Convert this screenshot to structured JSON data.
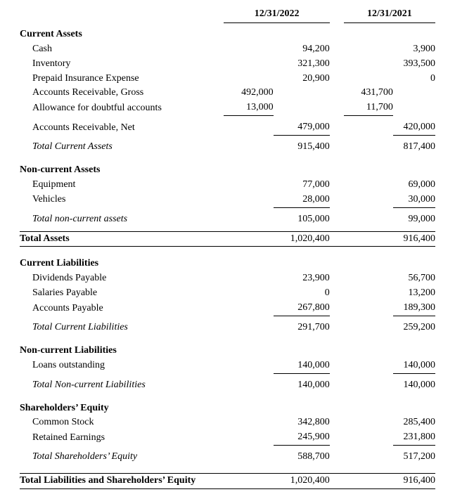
{
  "columns": {
    "y2022": "12/31/2022",
    "y2021": "12/31/2021"
  },
  "current_assets": {
    "heading": "Current Assets",
    "cash": {
      "label": "Cash",
      "v22": "94,200",
      "v21": "3,900"
    },
    "inventory": {
      "label": "Inventory",
      "v22": "321,300",
      "v21": "393,500"
    },
    "prepaid_ins": {
      "label": "Prepaid Insurance Expense",
      "v22": "20,900",
      "v21": "0"
    },
    "ar_gross": {
      "label": "Accounts Receivable, Gross",
      "s22": "492,000",
      "s21": "431,700"
    },
    "allowance": {
      "label": "Allowance for doubtful accounts",
      "s22": "13,000",
      "s21": "11,700"
    },
    "ar_net": {
      "label": "Accounts Receivable, Net",
      "v22": "479,000",
      "v21": "420,000"
    },
    "total": {
      "label": "Total Current Assets",
      "v22": "915,400",
      "v21": "817,400"
    }
  },
  "non_current_assets": {
    "heading": "Non-current Assets",
    "equipment": {
      "label": "Equipment",
      "v22": "77,000",
      "v21": "69,000"
    },
    "vehicles": {
      "label": "Vehicles",
      "v22": "28,000",
      "v21": "30,000"
    },
    "total": {
      "label": "Total non-current assets",
      "v22": "105,000",
      "v21": "99,000"
    }
  },
  "total_assets": {
    "label": "Total Assets",
    "v22": "1,020,400",
    "v21": "916,400"
  },
  "current_liabilities": {
    "heading": "Current Liabilities",
    "div_pay": {
      "label": "Dividends Payable",
      "v22": "23,900",
      "v21": "56,700"
    },
    "sal_pay": {
      "label": "Salaries Payable",
      "v22": "0",
      "v21": "13,200"
    },
    "acct_pay": {
      "label": "Accounts Payable",
      "v22": "267,800",
      "v21": "189,300"
    },
    "total": {
      "label": "Total Current Liabilities",
      "v22": "291,700",
      "v21": "259,200"
    }
  },
  "non_current_liabilities": {
    "heading": "Non-current Liabilities",
    "loans": {
      "label": "Loans outstanding",
      "v22": "140,000",
      "v21": "140,000"
    },
    "total": {
      "label": "Total Non-current Liabilities",
      "v22": "140,000",
      "v21": "140,000"
    }
  },
  "equity": {
    "heading": "Shareholders’ Equity",
    "common": {
      "label": "Common Stock",
      "v22": "342,800",
      "v21": "285,400"
    },
    "retained": {
      "label": "Retained Earnings",
      "v22": "245,900",
      "v21": "231,800"
    },
    "total": {
      "label": "Total Shareholders’ Equity",
      "v22": "588,700",
      "v21": "517,200"
    }
  },
  "total_liab_eq": {
    "label": "Total Liabilities and Shareholders’ Equity",
    "v22": "1,020,400",
    "v21": "916,400"
  }
}
